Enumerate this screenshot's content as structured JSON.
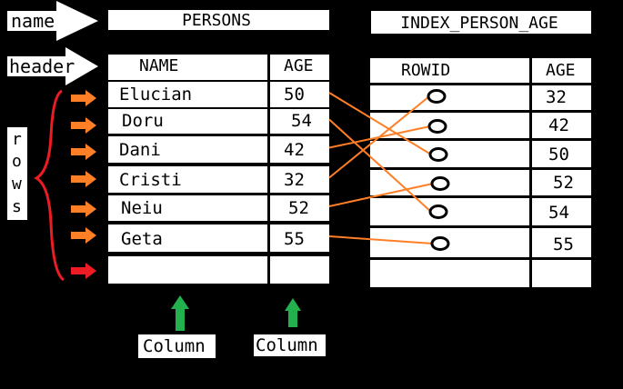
{
  "labels": {
    "name": "name",
    "header": "header",
    "rows": [
      "r",
      "o",
      "w",
      "s"
    ],
    "column_left": "Column",
    "column_right": "Column"
  },
  "persons": {
    "title": "PERSONS",
    "headers": [
      "NAME",
      "AGE"
    ],
    "rows": [
      {
        "name": "Elucian",
        "age": "50"
      },
      {
        "name": "Doru",
        "age": "54"
      },
      {
        "name": "Dani",
        "age": "42"
      },
      {
        "name": "Cristi",
        "age": "32"
      },
      {
        "name": "Neiu",
        "age": "52"
      },
      {
        "name": "Geta",
        "age": "55"
      },
      {
        "name": "",
        "age": ""
      }
    ]
  },
  "index": {
    "title": "INDEX_PERSON_AGE",
    "headers": [
      "ROWID",
      "AGE"
    ],
    "ages": [
      "32",
      "42",
      "50",
      "52",
      "54",
      "55"
    ]
  },
  "links": [
    {
      "from_row": 0,
      "to_index": 2
    },
    {
      "from_row": 1,
      "to_index": 4
    },
    {
      "from_row": 2,
      "to_index": 1
    },
    {
      "from_row": 3,
      "to_index": 0
    },
    {
      "from_row": 4,
      "to_index": 3
    },
    {
      "from_row": 5,
      "to_index": 5
    }
  ],
  "colors": {
    "background": "#000000",
    "cell": "#ffffff",
    "row_arrow": "#ff7f27",
    "empty_row_arrow": "#ed1c24",
    "brace": "#ed1c24",
    "link": "#ff7f27",
    "column_arrow": "#22b14c"
  }
}
